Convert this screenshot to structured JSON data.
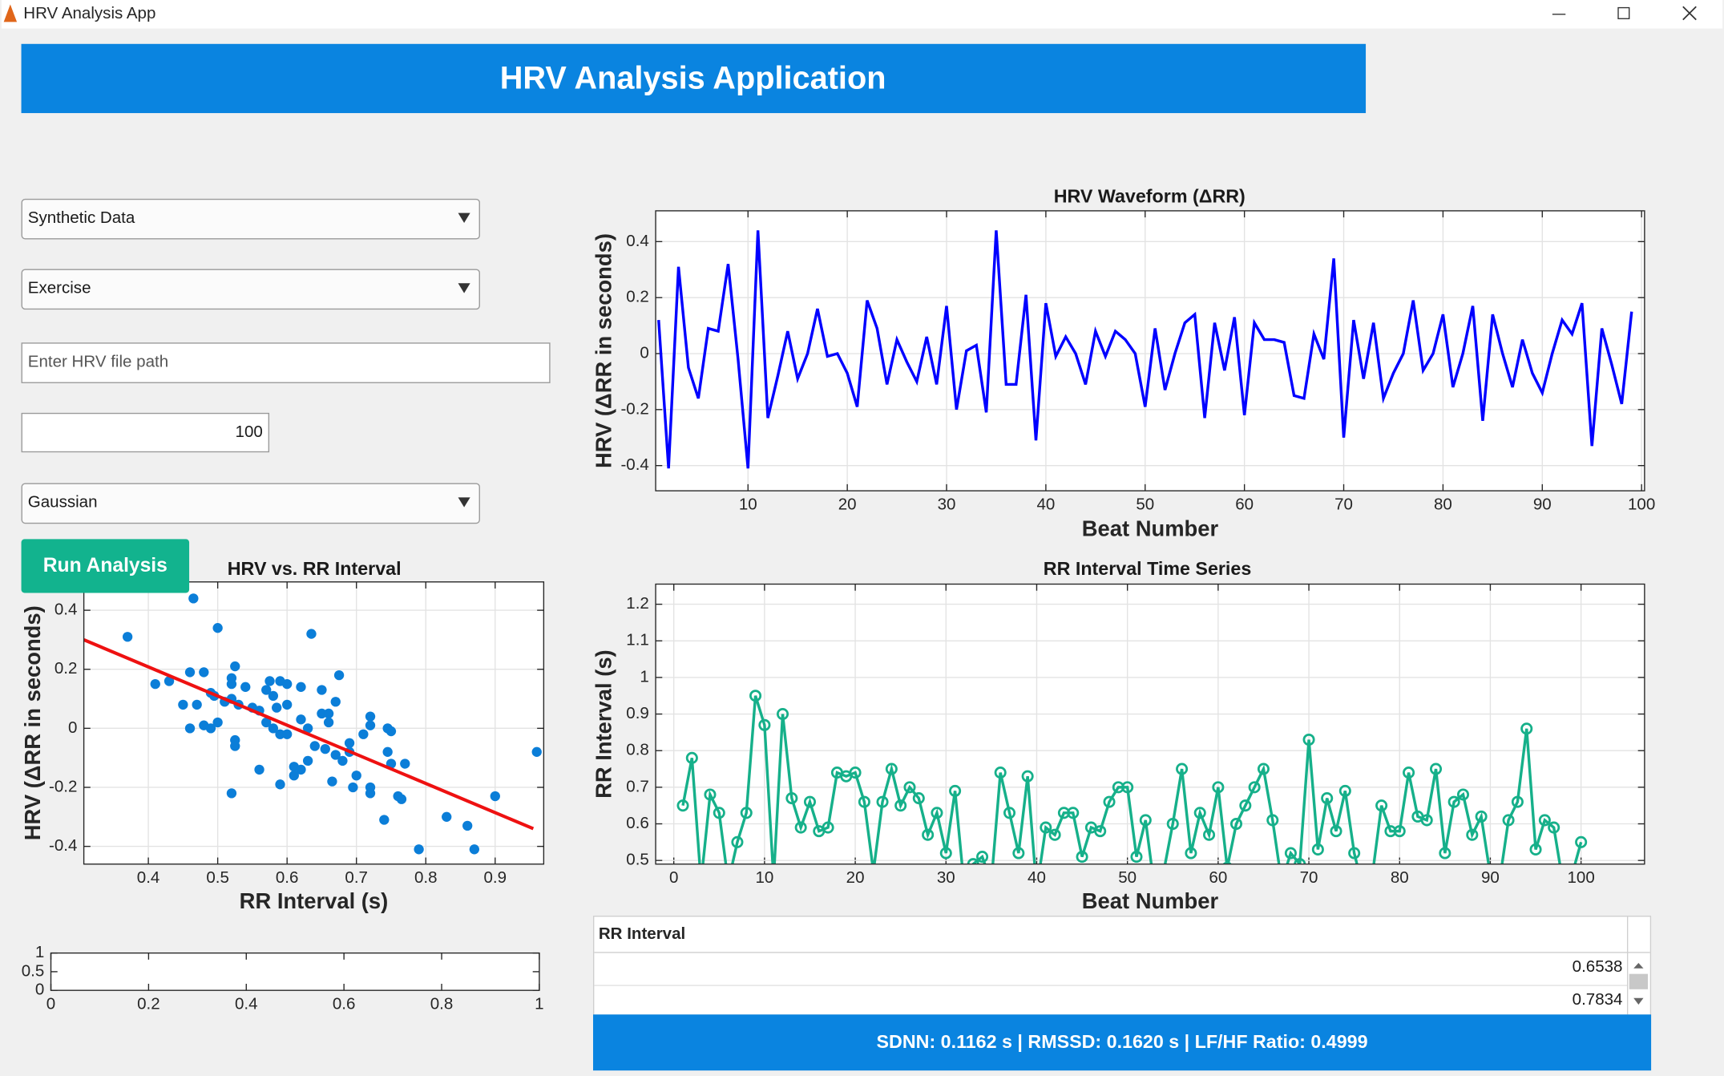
{
  "window_title": "HRV Analysis App",
  "header": {
    "title": "HRV Analysis Application"
  },
  "controls": {
    "data_source": "Synthetic Data",
    "condition": "Exercise",
    "file_path_placeholder": "Enter HRV file path",
    "num_beats": "100",
    "noise_type": "Gaussian",
    "run_button": "Run Analysis"
  },
  "table": {
    "header": "RR Interval",
    "rows": [
      "0.6538",
      "0.7834"
    ]
  },
  "stats": "SDNN: 0.1162 s | RMSSD: 0.1620 s | LF/HF Ratio: 0.4999",
  "chart_data": [
    {
      "type": "line",
      "title": "HRV Waveform (ΔRR)",
      "x_label": "Beat Number",
      "y_label": "HRV (ΔRR in seconds)",
      "color": "#0000ff",
      "grid": true,
      "xlim": [
        0.7,
        100.3
      ],
      "xticks": [
        10,
        20,
        30,
        40,
        50,
        60,
        70,
        80,
        90,
        100
      ],
      "ylim": [
        -0.49,
        0.51
      ],
      "yticks": [
        -0.4,
        -0.2,
        0,
        0.2,
        0.4
      ],
      "x": [
        1,
        2,
        3,
        4,
        5,
        6,
        7,
        8,
        9,
        10,
        11,
        12,
        13,
        14,
        15,
        16,
        17,
        18,
        19,
        20,
        21,
        22,
        23,
        24,
        25,
        26,
        27,
        28,
        29,
        30,
        31,
        32,
        33,
        34,
        35,
        36,
        37,
        38,
        39,
        40,
        41,
        42,
        43,
        44,
        45,
        46,
        47,
        48,
        49,
        50,
        51,
        52,
        53,
        54,
        55,
        56,
        57,
        58,
        59,
        60,
        61,
        62,
        63,
        64,
        65,
        66,
        67,
        68,
        69,
        70,
        71,
        72,
        73,
        74,
        75,
        76,
        77,
        78,
        79,
        80,
        81,
        82,
        83,
        84,
        85,
        86,
        87,
        88,
        89,
        90,
        91,
        92,
        93,
        94,
        95,
        96,
        97,
        98,
        99
      ],
      "values": [
        0.12,
        -0.41,
        0.31,
        -0.05,
        -0.16,
        0.09,
        0.08,
        0.32,
        -0.02,
        -0.41,
        0.44,
        -0.23,
        -0.08,
        0.08,
        -0.09,
        0.0,
        0.16,
        -0.01,
        0.0,
        -0.07,
        -0.19,
        0.19,
        0.09,
        -0.11,
        0.05,
        -0.03,
        -0.1,
        0.06,
        -0.11,
        0.17,
        -0.2,
        0.01,
        0.03,
        -0.21,
        0.44,
        -0.11,
        -0.11,
        0.21,
        -0.31,
        0.18,
        -0.01,
        0.06,
        0.0,
        -0.11,
        0.08,
        -0.01,
        0.08,
        0.05,
        0.0,
        -0.19,
        0.09,
        -0.13,
        0.0,
        0.11,
        0.14,
        -0.23,
        0.11,
        -0.06,
        0.13,
        -0.22,
        0.11,
        0.05,
        0.05,
        0.04,
        -0.15,
        -0.16,
        0.07,
        -0.02,
        0.34,
        -0.3,
        0.12,
        -0.09,
        0.11,
        -0.16,
        -0.07,
        0.0,
        0.19,
        -0.06,
        0.0,
        0.14,
        -0.12,
        0.0,
        0.17,
        -0.24,
        0.14,
        0.0,
        -0.12,
        0.05,
        -0.07,
        -0.14,
        0.0,
        0.12,
        0.07,
        0.18,
        -0.33,
        0.09,
        -0.04,
        -0.18,
        0.15
      ]
    },
    {
      "type": "line",
      "title": "RR Interval Time Series",
      "x_label": "Beat Number",
      "y_label": "RR Interval (s)",
      "color": "#16b08a",
      "marker": "circle",
      "grid": true,
      "xlim": [
        -2,
        107
      ],
      "xticks": [
        0,
        10,
        20,
        30,
        40,
        50,
        60,
        70,
        80,
        90,
        100
      ],
      "ylim": [
        0.49,
        1.255
      ],
      "yticks": [
        0.5,
        0.6,
        0.7,
        0.8,
        0.9,
        1,
        1.1,
        1.2
      ],
      "x": [
        1,
        2,
        3,
        4,
        5,
        6,
        7,
        8,
        9,
        10,
        11,
        12,
        13,
        14,
        15,
        16,
        17,
        18,
        19,
        20,
        21,
        22,
        23,
        24,
        25,
        26,
        27,
        28,
        29,
        30,
        31,
        32,
        33,
        34,
        35,
        36,
        37,
        38,
        39,
        40,
        41,
        42,
        43,
        44,
        45,
        46,
        47,
        48,
        49,
        50,
        51,
        52,
        53,
        54,
        55,
        56,
        57,
        58,
        59,
        60,
        61,
        62,
        63,
        64,
        65,
        66,
        67,
        68,
        69,
        70,
        71,
        72,
        73,
        74,
        75,
        76,
        77,
        78,
        79,
        80,
        81,
        82,
        83,
        84,
        85,
        86,
        87,
        88,
        89,
        90,
        91,
        92,
        93,
        94,
        95,
        96,
        97,
        98,
        99,
        100
      ],
      "values": [
        0.65,
        0.78,
        0.44,
        0.68,
        0.63,
        0.44,
        0.55,
        0.63,
        0.95,
        0.87,
        0.45,
        0.9,
        0.67,
        0.59,
        0.66,
        0.58,
        0.59,
        0.74,
        0.73,
        0.74,
        0.66,
        0.47,
        0.66,
        0.75,
        0.65,
        0.7,
        0.67,
        0.57,
        0.63,
        0.52,
        0.69,
        0.43,
        0.49,
        0.51,
        0.44,
        0.74,
        0.63,
        0.52,
        0.73,
        0.42,
        0.59,
        0.57,
        0.63,
        0.63,
        0.51,
        0.59,
        0.58,
        0.66,
        0.7,
        0.7,
        0.51,
        0.61,
        0.42,
        0.47,
        0.6,
        0.75,
        0.52,
        0.63,
        0.57,
        0.7,
        0.48,
        0.6,
        0.65,
        0.7,
        0.75,
        0.61,
        0.44,
        0.52,
        0.49,
        0.83,
        0.53,
        0.67,
        0.58,
        0.69,
        0.52,
        0.42,
        0.46,
        0.65,
        0.58,
        0.58,
        0.74,
        0.62,
        0.61,
        0.75,
        0.52,
        0.66,
        0.68,
        0.57,
        0.62,
        0.46,
        0.44,
        0.61,
        0.66,
        0.86,
        0.53,
        0.61,
        0.59,
        0.44,
        0.46,
        0.55
      ]
    },
    {
      "type": "scatter",
      "title": "HRV vs. RR Interval",
      "x_label": "RR Interval (s)",
      "y_label": "HRV (ΔRR in seconds)",
      "color": "#0b7ed8",
      "grid": true,
      "xlim": [
        0.307,
        0.97
      ],
      "xticks": [
        0.4,
        0.5,
        0.6,
        0.7,
        0.8,
        0.9
      ],
      "ylim": [
        -0.46,
        0.496
      ],
      "yticks": [
        -0.4,
        -0.2,
        0,
        0.2,
        0.4
      ],
      "x": [
        0.37,
        0.41,
        0.43,
        0.45,
        0.46,
        0.46,
        0.465,
        0.47,
        0.48,
        0.48,
        0.49,
        0.49,
        0.495,
        0.5,
        0.5,
        0.51,
        0.52,
        0.52,
        0.52,
        0.52,
        0.525,
        0.525,
        0.525,
        0.53,
        0.54,
        0.55,
        0.56,
        0.56,
        0.57,
        0.57,
        0.575,
        0.58,
        0.58,
        0.585,
        0.59,
        0.59,
        0.59,
        0.6,
        0.6,
        0.6,
        0.61,
        0.61,
        0.62,
        0.62,
        0.62,
        0.63,
        0.63,
        0.635,
        0.64,
        0.65,
        0.65,
        0.655,
        0.66,
        0.66,
        0.665,
        0.67,
        0.67,
        0.675,
        0.68,
        0.69,
        0.69,
        0.695,
        0.7,
        0.71,
        0.72,
        0.72,
        0.72,
        0.72,
        0.74,
        0.745,
        0.745,
        0.75,
        0.75,
        0.76,
        0.765,
        0.77,
        0.79,
        0.83,
        0.86,
        0.87,
        0.9,
        0.96
      ],
      "values": [
        0.31,
        0.15,
        0.16,
        0.08,
        0.19,
        0.0,
        0.44,
        0.08,
        0.19,
        0.01,
        0.0,
        0.12,
        0.11,
        0.34,
        0.02,
        0.09,
        0.15,
        0.17,
        0.1,
        -0.22,
        0.21,
        -0.04,
        -0.06,
        0.08,
        0.14,
        0.07,
        0.06,
        -0.14,
        0.02,
        0.13,
        0.16,
        0.11,
        0.0,
        0.07,
        -0.02,
        0.16,
        -0.19,
        0.15,
        0.08,
        -0.02,
        -0.13,
        -0.16,
        0.03,
        0.14,
        -0.14,
        -0.11,
        0.0,
        0.32,
        -0.06,
        0.05,
        0.13,
        -0.07,
        0.05,
        0.02,
        -0.18,
        0.09,
        -0.09,
        0.18,
        -0.11,
        -0.08,
        -0.05,
        -0.2,
        -0.16,
        -0.02,
        0.01,
        0.04,
        -0.2,
        -0.22,
        -0.31,
        0.0,
        -0.08,
        -0.01,
        -0.12,
        -0.23,
        -0.24,
        -0.12,
        -0.41,
        -0.3,
        -0.33,
        -0.41,
        -0.23,
        -0.08
      ],
      "fit_line": {
        "x": [
          0.307,
          0.955
        ],
        "values": [
          0.3,
          -0.34
        ],
        "color": "#ee1111"
      }
    },
    {
      "type": "empty",
      "grid": false,
      "xlim": [
        0,
        1
      ],
      "xticks": [
        0,
        0.2,
        0.4,
        0.6,
        0.8,
        1
      ],
      "ylim": [
        0,
        1
      ],
      "yticks": [
        0,
        0.5,
        1
      ]
    }
  ]
}
